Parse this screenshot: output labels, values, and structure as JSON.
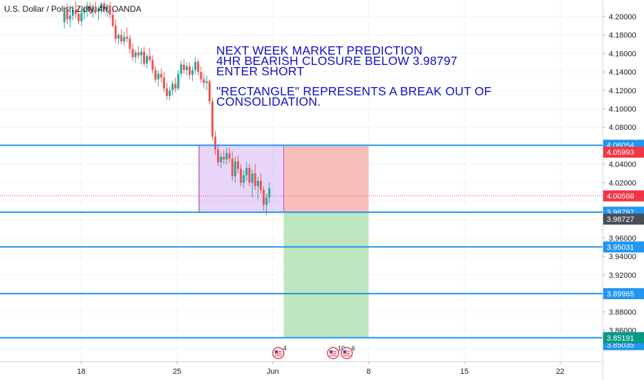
{
  "symbol_title": "U.S. Dollar / Polish Zloty, 4h, OANDA",
  "annotation": {
    "lines": [
      "NEXT WEEK MARKET PREDICTION",
      "4HR BEARISH CLOSURE BELOW 3.98797",
      "ENTER SHORT",
      "",
      "\"RECTANGLE\" REPRESENTS A BREAK OUT OF",
      "CONSOLIDATION."
    ]
  },
  "event_markers": [
    {
      "label": "4",
      "x_date": "2020-06-01"
    },
    {
      "label": "10",
      "x_date": "2020-06-05"
    },
    {
      "label": "6",
      "x_date": "2020-06-06"
    }
  ],
  "chart_data": {
    "type": "candlestick",
    "title": "U.S. Dollar / Polish Zloty, 4h, OANDA",
    "xlabel": "",
    "ylabel": "",
    "x_ticks": [
      "18",
      "25",
      "Jun",
      "8",
      "15",
      "22"
    ],
    "y_ticks": [
      "3.86000",
      "3.88000",
      "3.92000",
      "3.94000",
      "3.96000",
      "4.02000",
      "4.04000",
      "4.08000",
      "4.10000",
      "4.12000",
      "4.14000",
      "4.16000",
      "4.18000",
      "4.20000"
    ],
    "ylim": [
      3.835,
      4.216
    ],
    "grid": true,
    "horizontal_levels": [
      {
        "value": 4.06054,
        "label": "4.06054",
        "color": "#2196f3"
      },
      {
        "value": 3.98797,
        "label": "3.98797",
        "color": "#2196f3"
      },
      {
        "value": 3.95031,
        "label": "3.95031",
        "color": "#2196f3"
      },
      {
        "value": 3.89965,
        "label": "3.89965",
        "color": "#2196f3"
      },
      {
        "value": 3.85191,
        "label": "3.85191",
        "color": "#2196f3"
      }
    ],
    "price_labels": [
      {
        "value": 4.05993,
        "label": "4.05993",
        "color": "#f23645"
      },
      {
        "value": 4.00566,
        "label": "4.00566",
        "color": "#f23645"
      },
      {
        "value": 3.98727,
        "label": "3.98727",
        "color": "#4a4e59"
      },
      {
        "value": 3.85035,
        "label": "3.85035",
        "color": "#2196f3"
      },
      {
        "value": 3.85191,
        "label": "3.85191",
        "color": "#089981"
      }
    ],
    "current_price_line": 4.00566,
    "consolidation_rectangle": {
      "y_top": 4.06054,
      "y_bottom": 3.98797,
      "color": "#c9a3f2"
    },
    "short_position": {
      "entry": 3.98797,
      "stop": 4.06054,
      "target": 3.85191,
      "stop_color": "#f6a8a6",
      "target_color": "#a8deaa"
    },
    "colors": {
      "up": "#26a69a",
      "down": "#ef5350"
    },
    "candles": [
      [
        4.194,
        4.21,
        4.187,
        4.205
      ],
      [
        4.205,
        4.214,
        4.192,
        4.197
      ],
      [
        4.197,
        4.206,
        4.188,
        4.201
      ],
      [
        4.201,
        4.212,
        4.196,
        4.207
      ],
      [
        4.207,
        4.216,
        4.198,
        4.203
      ],
      [
        4.203,
        4.21,
        4.192,
        4.195
      ],
      [
        4.195,
        4.207,
        4.19,
        4.204
      ],
      [
        4.204,
        4.212,
        4.197,
        4.208
      ],
      [
        4.208,
        4.216,
        4.2,
        4.212
      ],
      [
        4.212,
        4.216,
        4.203,
        4.206
      ],
      [
        4.206,
        4.214,
        4.199,
        4.211
      ],
      [
        4.211,
        4.216,
        4.202,
        4.205
      ],
      [
        4.205,
        4.212,
        4.196,
        4.209
      ],
      [
        4.209,
        4.216,
        4.203,
        4.214
      ],
      [
        4.214,
        4.216,
        4.204,
        4.207
      ],
      [
        4.207,
        4.214,
        4.2,
        4.212
      ],
      [
        4.212,
        4.216,
        4.198,
        4.202
      ],
      [
        4.202,
        4.209,
        4.188,
        4.19
      ],
      [
        4.19,
        4.197,
        4.172,
        4.176
      ],
      [
        4.176,
        4.182,
        4.17,
        4.18
      ],
      [
        4.18,
        4.186,
        4.17,
        4.173
      ],
      [
        4.173,
        4.184,
        4.169,
        4.178
      ],
      [
        4.178,
        4.188,
        4.172,
        4.176
      ],
      [
        4.176,
        4.18,
        4.16,
        4.165
      ],
      [
        4.165,
        4.171,
        4.152,
        4.156
      ],
      [
        4.156,
        4.164,
        4.15,
        4.161
      ],
      [
        4.161,
        4.168,
        4.154,
        4.158
      ],
      [
        4.158,
        4.166,
        4.148,
        4.162
      ],
      [
        4.162,
        4.167,
        4.146,
        4.149
      ],
      [
        4.149,
        4.16,
        4.144,
        4.157
      ],
      [
        4.157,
        4.166,
        4.151,
        4.153
      ],
      [
        4.153,
        4.158,
        4.138,
        4.142
      ],
      [
        4.142,
        4.146,
        4.128,
        4.132
      ],
      [
        4.132,
        4.142,
        4.124,
        4.138
      ],
      [
        4.138,
        4.144,
        4.129,
        4.134
      ],
      [
        4.134,
        4.14,
        4.118,
        4.122
      ],
      [
        4.122,
        4.128,
        4.11,
        4.114
      ],
      [
        4.114,
        4.124,
        4.109,
        4.12
      ],
      [
        4.12,
        4.13,
        4.115,
        4.127
      ],
      [
        4.127,
        4.134,
        4.118,
        4.122
      ],
      [
        4.122,
        4.142,
        4.12,
        4.138
      ],
      [
        4.138,
        4.152,
        4.134,
        4.148
      ],
      [
        4.148,
        4.154,
        4.138,
        4.142
      ],
      [
        4.142,
        4.15,
        4.136,
        4.146
      ],
      [
        4.146,
        4.15,
        4.132,
        4.137
      ],
      [
        4.137,
        4.146,
        4.13,
        4.142
      ],
      [
        4.142,
        4.156,
        4.138,
        4.151
      ],
      [
        4.151,
        4.154,
        4.136,
        4.14
      ],
      [
        4.14,
        4.146,
        4.128,
        4.132
      ],
      [
        4.132,
        4.138,
        4.122,
        4.128
      ],
      [
        4.128,
        4.136,
        4.12,
        4.13
      ],
      [
        4.13,
        4.132,
        4.105,
        4.108
      ],
      [
        4.108,
        4.112,
        4.066,
        4.07
      ],
      [
        4.07,
        4.076,
        4.05,
        4.056
      ],
      [
        4.056,
        4.062,
        4.038,
        4.042
      ],
      [
        4.042,
        4.052,
        4.036,
        4.048
      ],
      [
        4.048,
        4.055,
        4.04,
        4.045
      ],
      [
        4.045,
        4.058,
        4.04,
        4.052
      ],
      [
        4.052,
        4.058,
        4.042,
        4.046
      ],
      [
        4.046,
        4.054,
        4.022,
        4.027
      ],
      [
        4.027,
        4.048,
        4.02,
        4.043
      ],
      [
        4.043,
        4.05,
        4.03,
        4.035
      ],
      [
        4.035,
        4.04,
        4.016,
        4.02
      ],
      [
        4.02,
        4.033,
        4.014,
        4.028
      ],
      [
        4.028,
        4.042,
        4.022,
        4.036
      ],
      [
        4.036,
        4.04,
        4.016,
        4.02
      ],
      [
        4.02,
        4.034,
        4.004,
        4.03
      ],
      [
        4.03,
        4.04,
        4.012,
        4.016
      ],
      [
        4.016,
        4.026,
        4.002,
        4.022
      ],
      [
        4.022,
        4.03,
        4.008,
        4.012
      ],
      [
        4.012,
        4.016,
        3.99,
        3.996
      ],
      [
        3.996,
        4.008,
        3.985,
        4.004
      ],
      [
        4.004,
        4.02,
        3.998,
        4.014
      ]
    ]
  }
}
